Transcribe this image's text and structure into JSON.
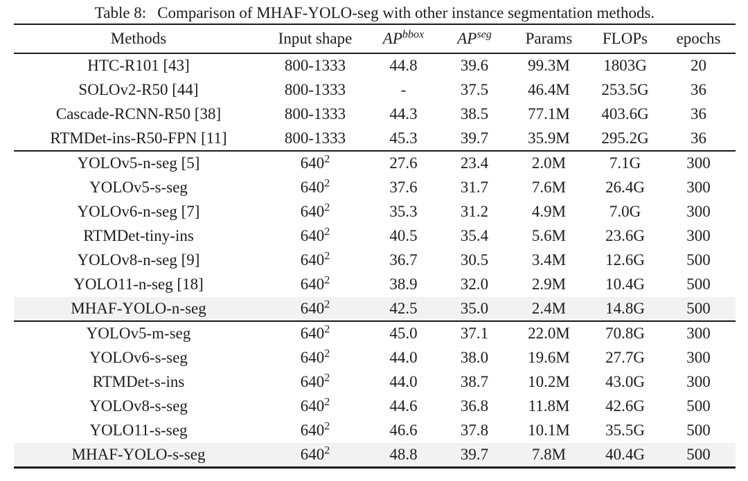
{
  "page": {
    "background": "#ffffff",
    "text_color": "#1c1c1c",
    "rule_color": "#1a1a1a",
    "highlight_color": "#f2f2f2"
  },
  "caption": {
    "label": "Table 8:",
    "text": "Comparison of MHAF-YOLO-seg with other instance segmentation methods."
  },
  "table": {
    "columns": [
      {
        "label": "Methods",
        "sup": ""
      },
      {
        "label": "Input shape",
        "sup": ""
      },
      {
        "label": "AP",
        "sup": "bbox"
      },
      {
        "label": "AP",
        "sup": "seg"
      },
      {
        "label": "Params",
        "sup": ""
      },
      {
        "label": "FLOPs",
        "sup": ""
      },
      {
        "label": "epochs",
        "sup": ""
      }
    ],
    "rows": [
      {
        "method": "HTC-R101 [43]",
        "shape_base": "800-1333",
        "shape_sup": "",
        "ap_bbox": "44.8",
        "ap_seg": "39.6",
        "params": "99.3M",
        "flops": "1803G",
        "epochs": "20",
        "section": 1,
        "highlight": false
      },
      {
        "method": "SOLOv2-R50 [44]",
        "shape_base": "800-1333",
        "shape_sup": "",
        "ap_bbox": "-",
        "ap_seg": "37.5",
        "params": "46.4M",
        "flops": "253.5G",
        "epochs": "36",
        "section": 1,
        "highlight": false
      },
      {
        "method": "Cascade-RCNN-R50 [38]",
        "shape_base": "800-1333",
        "shape_sup": "",
        "ap_bbox": "44.3",
        "ap_seg": "38.5",
        "params": "77.1M",
        "flops": "403.6G",
        "epochs": "36",
        "section": 1,
        "highlight": false
      },
      {
        "method": "RTMDet-ins-R50-FPN [11]",
        "shape_base": "800-1333",
        "shape_sup": "",
        "ap_bbox": "45.3",
        "ap_seg": "39.7",
        "params": "35.9M",
        "flops": "295.2G",
        "epochs": "36",
        "section": 1,
        "highlight": false
      },
      {
        "method": "YOLOv5-n-seg [5]",
        "shape_base": "640",
        "shape_sup": "2",
        "ap_bbox": "27.6",
        "ap_seg": "23.4",
        "params": "2.0M",
        "flops": "7.1G",
        "epochs": "300",
        "section": 2,
        "highlight": false
      },
      {
        "method": "YOLOv5-s-seg",
        "shape_base": "640",
        "shape_sup": "2",
        "ap_bbox": "37.6",
        "ap_seg": "31.7",
        "params": "7.6M",
        "flops": "26.4G",
        "epochs": "300",
        "section": 2,
        "highlight": false
      },
      {
        "method": "YOLOv6-n-seg [7]",
        "shape_base": "640",
        "shape_sup": "2",
        "ap_bbox": "35.3",
        "ap_seg": "31.2",
        "params": "4.9M",
        "flops": "7.0G",
        "epochs": "300",
        "section": 2,
        "highlight": false
      },
      {
        "method": "RTMDet-tiny-ins",
        "shape_base": "640",
        "shape_sup": "2",
        "ap_bbox": "40.5",
        "ap_seg": "35.4",
        "params": "5.6M",
        "flops": "23.6G",
        "epochs": "300",
        "section": 2,
        "highlight": false
      },
      {
        "method": "YOLOv8-n-seg [9]",
        "shape_base": "640",
        "shape_sup": "2",
        "ap_bbox": "36.7",
        "ap_seg": "30.5",
        "params": "3.4M",
        "flops": "12.6G",
        "epochs": "500",
        "section": 2,
        "highlight": false
      },
      {
        "method": "YOLO11-n-seg [18]",
        "shape_base": "640",
        "shape_sup": "2",
        "ap_bbox": "38.9",
        "ap_seg": "32.0",
        "params": "2.9M",
        "flops": "10.4G",
        "epochs": "500",
        "section": 2,
        "highlight": false
      },
      {
        "method": "MHAF-YOLO-n-seg",
        "shape_base": "640",
        "shape_sup": "2",
        "ap_bbox": "42.5",
        "ap_seg": "35.0",
        "params": "2.4M",
        "flops": "14.8G",
        "epochs": "500",
        "section": 2,
        "highlight": true
      },
      {
        "method": "YOLOv5-m-seg",
        "shape_base": "640",
        "shape_sup": "2",
        "ap_bbox": "45.0",
        "ap_seg": "37.1",
        "params": "22.0M",
        "flops": "70.8G",
        "epochs": "300",
        "section": 3,
        "highlight": false
      },
      {
        "method": "YOLOv6-s-seg",
        "shape_base": "640",
        "shape_sup": "2",
        "ap_bbox": "44.0",
        "ap_seg": "38.0",
        "params": "19.6M",
        "flops": "27.7G",
        "epochs": "300",
        "section": 3,
        "highlight": false
      },
      {
        "method": "RTMDet-s-ins",
        "shape_base": "640",
        "shape_sup": "2",
        "ap_bbox": "44.0",
        "ap_seg": "38.7",
        "params": "10.2M",
        "flops": "43.0G",
        "epochs": "300",
        "section": 3,
        "highlight": false
      },
      {
        "method": "YOLOv8-s-seg",
        "shape_base": "640",
        "shape_sup": "2",
        "ap_bbox": "44.6",
        "ap_seg": "36.8",
        "params": "11.8M",
        "flops": "42.6G",
        "epochs": "500",
        "section": 3,
        "highlight": false
      },
      {
        "method": "YOLO11-s-seg",
        "shape_base": "640",
        "shape_sup": "2",
        "ap_bbox": "46.6",
        "ap_seg": "37.8",
        "params": "10.1M",
        "flops": "35.5G",
        "epochs": "500",
        "section": 3,
        "highlight": false
      },
      {
        "method": "MHAF-YOLO-s-seg",
        "shape_base": "640",
        "shape_sup": "2",
        "ap_bbox": "48.8",
        "ap_seg": "39.7",
        "params": "7.8M",
        "flops": "40.4G",
        "epochs": "500",
        "section": 3,
        "highlight": true
      }
    ]
  }
}
